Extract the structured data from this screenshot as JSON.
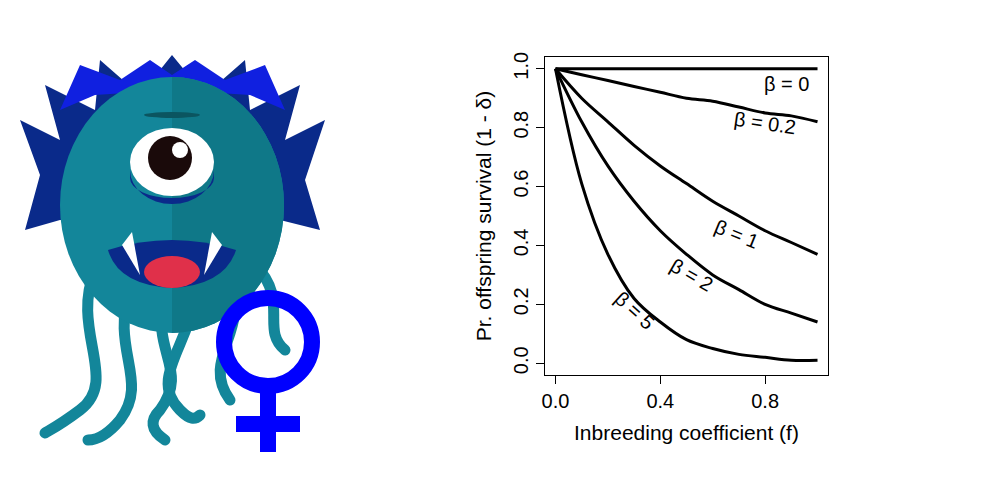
{
  "chart_data": {
    "type": "line",
    "x_label": "Inbreeding coefficient (f)",
    "y_label": "Pr. offspring survival (1 - δ)",
    "x": [
      0,
      0.1,
      0.2,
      0.3,
      0.4,
      0.5,
      0.6,
      0.7,
      0.8,
      0.9,
      1.0
    ],
    "series": [
      {
        "name": "β = 0",
        "color": "#000000",
        "values": [
          1,
          1,
          1,
          1,
          1,
          1,
          1,
          1,
          1,
          1,
          1
        ]
      },
      {
        "name": "β = 0.2",
        "color": "#000000",
        "values": [
          1,
          0.98,
          0.96,
          0.94,
          0.92,
          0.9,
          0.89,
          0.87,
          0.85,
          0.84,
          0.82
        ]
      },
      {
        "name": "β = 1",
        "color": "#000000",
        "values": [
          1,
          0.9,
          0.82,
          0.74,
          0.67,
          0.61,
          0.55,
          0.5,
          0.45,
          0.41,
          0.37
        ]
      },
      {
        "name": "β = 2",
        "color": "#000000",
        "values": [
          1,
          0.82,
          0.67,
          0.55,
          0.45,
          0.37,
          0.3,
          0.25,
          0.2,
          0.17,
          0.14
        ]
      },
      {
        "name": "β = 5",
        "color": "#000000",
        "values": [
          1,
          0.61,
          0.37,
          0.22,
          0.14,
          0.08,
          0.05,
          0.03,
          0.02,
          0.01,
          0.01
        ]
      }
    ],
    "annotations": [
      {
        "text": "β = 0",
        "x": 0.88,
        "y": 0.95
      },
      {
        "text": "β = 0.2",
        "x": 0.8,
        "y": 0.815
      },
      {
        "text": "β = 1",
        "x": 0.69,
        "y": 0.44
      },
      {
        "text": "β = 2",
        "x": 0.52,
        "y": 0.3
      },
      {
        "text": "β = 5",
        "x": 0.3,
        "y": 0.18
      }
    ],
    "xlim": [
      -0.04,
      1.04
    ],
    "ylim": [
      -0.04,
      1.04
    ],
    "xticks": [
      {
        "value": 0,
        "label": "0.0"
      },
      {
        "value": 0.4,
        "label": "0.4"
      },
      {
        "value": 0.8,
        "label": "0.8"
      }
    ],
    "yticks": [
      {
        "value": 0,
        "label": "0.0"
      },
      {
        "value": 0.2,
        "label": "0.2"
      },
      {
        "value": 0.4,
        "label": "0.4"
      },
      {
        "value": 0.6,
        "label": "0.6"
      },
      {
        "value": 0.8,
        "label": "0.8"
      },
      {
        "value": 1,
        "label": "1.0"
      }
    ],
    "grid": false,
    "line_style": "solid"
  }
}
